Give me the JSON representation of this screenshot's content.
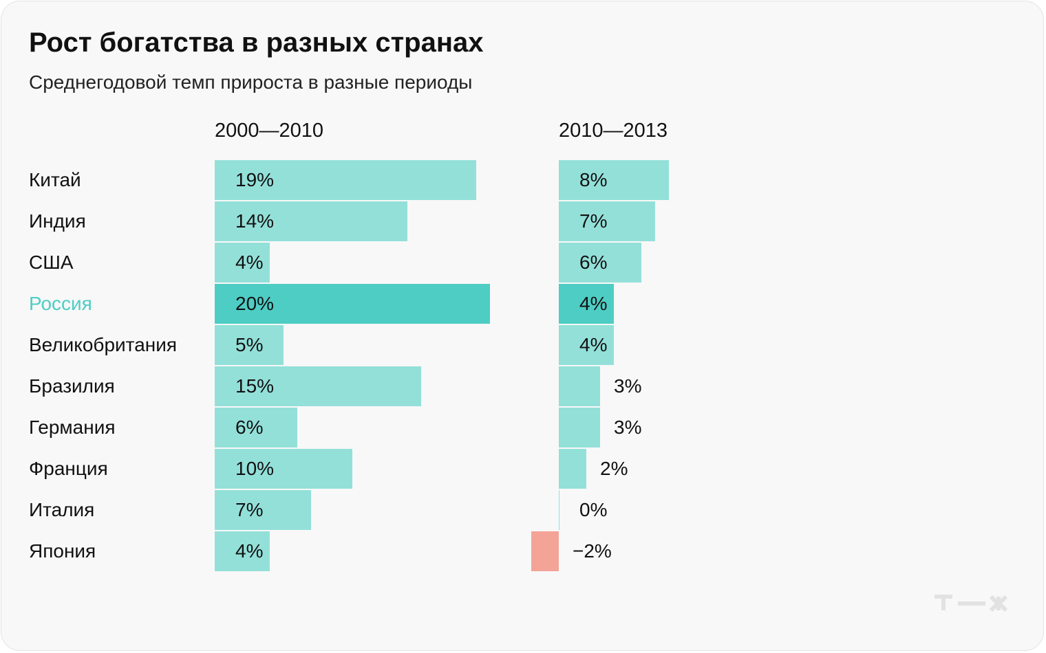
{
  "title": "Рост богатства в разных странах",
  "subtitle": "Среднегодовой темп прироста в разные периоды",
  "colors": {
    "bar": "#93e0d9",
    "bar_highlight": "#4ecdc4",
    "bar_negative": "#f4a397",
    "label_highlight": "#4ecdc4"
  },
  "chart_data": {
    "type": "bar",
    "orientation": "horizontal",
    "categories": [
      "Китай",
      "Индия",
      "США",
      "Россия",
      "Великобритания",
      "Бразилия",
      "Германия",
      "Франция",
      "Италия",
      "Япония"
    ],
    "highlight": "Россия",
    "series": [
      {
        "name": "2000—2010",
        "values": [
          19,
          14,
          4,
          20,
          5,
          15,
          6,
          10,
          7,
          4
        ],
        "labels": [
          "19%",
          "14%",
          "4%",
          "20%",
          "5%",
          "15%",
          "6%",
          "10%",
          "7%",
          "4%"
        ]
      },
      {
        "name": "2010—2013",
        "values": [
          8,
          7,
          6,
          4,
          4,
          3,
          3,
          2,
          0,
          -2
        ],
        "labels": [
          "8%",
          "7%",
          "6%",
          "4%",
          "4%",
          "3%",
          "3%",
          "2%",
          "0%",
          "−2%"
        ]
      }
    ],
    "unit": "%",
    "grid": false,
    "legend": "none"
  },
  "logo": "т—ж"
}
